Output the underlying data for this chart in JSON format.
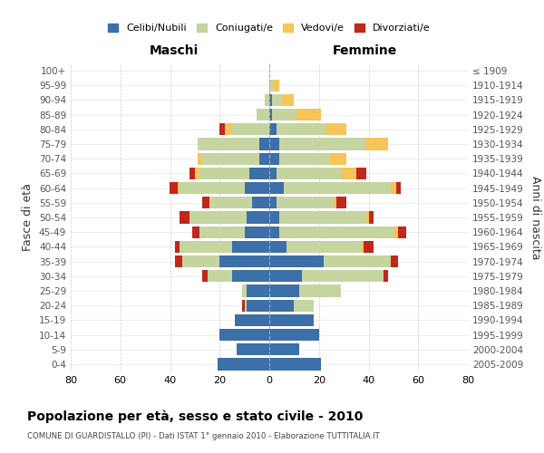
{
  "age_groups": [
    "0-4",
    "5-9",
    "10-14",
    "15-19",
    "20-24",
    "25-29",
    "30-34",
    "35-39",
    "40-44",
    "45-49",
    "50-54",
    "55-59",
    "60-64",
    "65-69",
    "70-74",
    "75-79",
    "80-84",
    "85-89",
    "90-94",
    "95-99",
    "100+"
  ],
  "birth_years": [
    "2005-2009",
    "2000-2004",
    "1995-1999",
    "1990-1994",
    "1985-1989",
    "1980-1984",
    "1975-1979",
    "1970-1974",
    "1965-1969",
    "1960-1964",
    "1955-1959",
    "1950-1954",
    "1945-1949",
    "1940-1944",
    "1935-1939",
    "1930-1934",
    "1925-1929",
    "1920-1924",
    "1915-1919",
    "1910-1914",
    "≤ 1909"
  ],
  "male": {
    "celibi": [
      21,
      13,
      20,
      14,
      9,
      9,
      15,
      20,
      15,
      10,
      9,
      7,
      10,
      8,
      4,
      4,
      0,
      0,
      0,
      0,
      0
    ],
    "coniugati": [
      0,
      0,
      0,
      0,
      1,
      2,
      10,
      15,
      21,
      18,
      23,
      17,
      26,
      20,
      23,
      25,
      15,
      5,
      2,
      0,
      0
    ],
    "vedovi": [
      0,
      0,
      0,
      0,
      0,
      0,
      0,
      0,
      0,
      0,
      0,
      0,
      1,
      2,
      2,
      0,
      3,
      0,
      0,
      0,
      0
    ],
    "divorziati": [
      0,
      0,
      0,
      0,
      1,
      0,
      2,
      3,
      2,
      3,
      4,
      3,
      3,
      2,
      0,
      0,
      2,
      0,
      0,
      0,
      0
    ]
  },
  "female": {
    "nubili": [
      21,
      12,
      20,
      18,
      10,
      12,
      13,
      22,
      7,
      4,
      4,
      3,
      6,
      3,
      4,
      4,
      3,
      1,
      1,
      0,
      0
    ],
    "coniugate": [
      0,
      0,
      0,
      0,
      8,
      17,
      33,
      27,
      30,
      46,
      35,
      23,
      43,
      26,
      20,
      35,
      20,
      10,
      4,
      2,
      0
    ],
    "vedove": [
      0,
      0,
      0,
      0,
      0,
      0,
      0,
      0,
      1,
      2,
      1,
      1,
      2,
      6,
      7,
      9,
      8,
      10,
      5,
      2,
      0
    ],
    "divorziate": [
      0,
      0,
      0,
      0,
      0,
      0,
      2,
      3,
      4,
      3,
      2,
      4,
      2,
      4,
      0,
      0,
      0,
      0,
      0,
      0,
      0
    ]
  },
  "colors": {
    "celibi": "#3d6fa8",
    "coniugati": "#c5d5a0",
    "vedovi": "#f5c55a",
    "divorziati": "#c0281c"
  },
  "title": "Popolazione per età, sesso e stato civile - 2010",
  "subtitle": "COMUNE DI GUARDISTALLO (PI) - Dati ISTAT 1° gennaio 2010 - Elaborazione TUTTITALIA.IT",
  "xlabel_left": "Maschi",
  "xlabel_right": "Femmine",
  "ylabel_left": "Fasce di età",
  "ylabel_right": "Anni di nascita",
  "xlim": 80,
  "legend_labels": [
    "Celibi/Nubili",
    "Coniugati/e",
    "Vedovi/e",
    "Divorziati/e"
  ],
  "bg_color": "#ffffff",
  "grid_color": "#cccccc"
}
